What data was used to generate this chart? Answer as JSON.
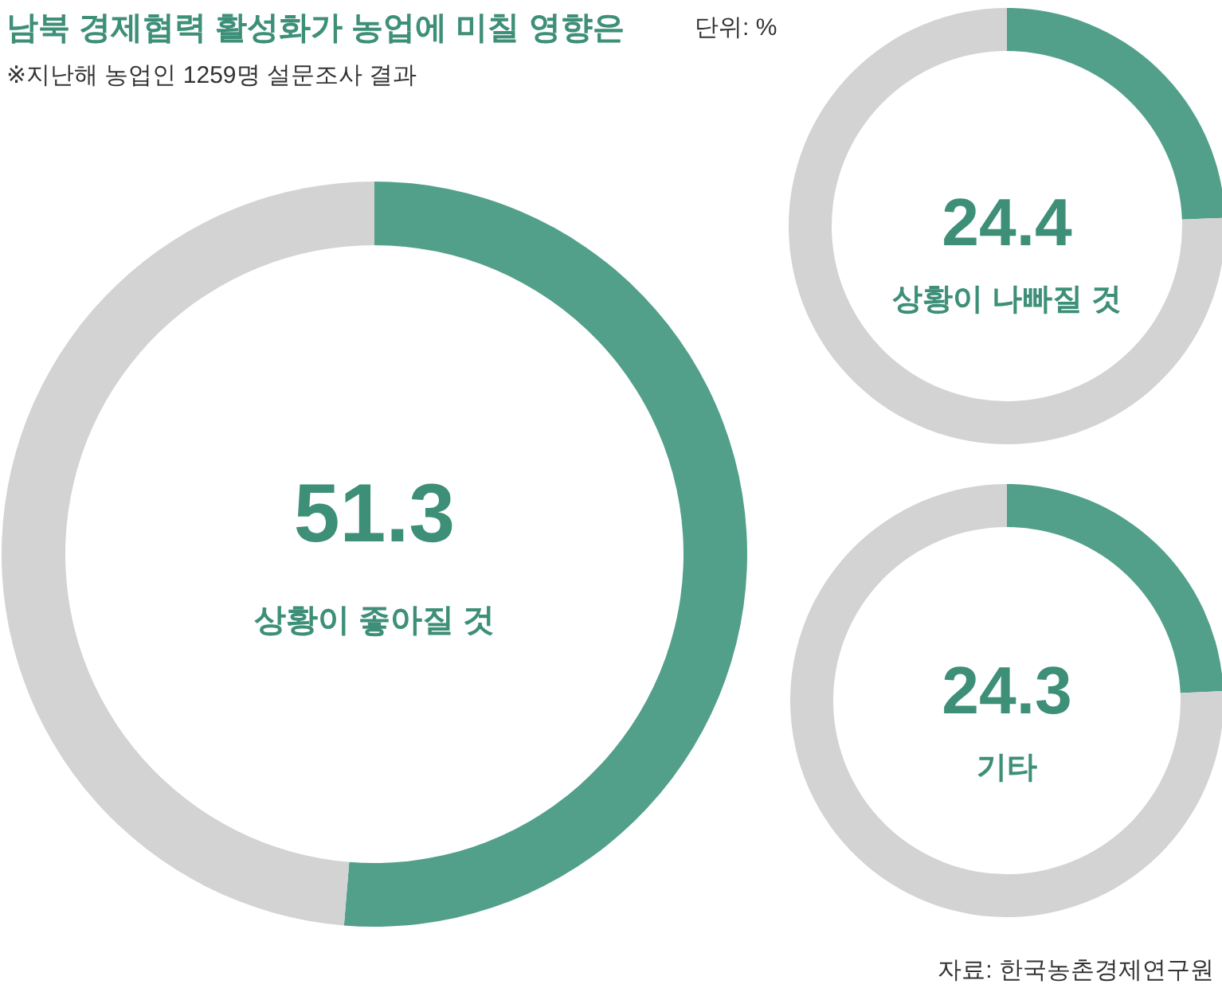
{
  "chart_data": [
    {
      "type": "donut",
      "title": "남북 경제협력 활성화가 농업에 미칠 영향은",
      "subtitle": "※지난해 농업인 1259명 설문조사 결과",
      "annotations": [
        "단위: %",
        "자료: 한국농촌경제연구원"
      ],
      "categories": [
        "상황이 좋아질 것",
        null
      ],
      "values": [
        51.3,
        48.7
      ],
      "colors": [
        "#52a08a",
        "#d3d3d3"
      ],
      "value_labels": [
        "51.3",
        null
      ]
    },
    {
      "type": "donut",
      "categories": [
        "상황이 나빠질 것",
        null
      ],
      "values": [
        24.4,
        75.6
      ],
      "colors": [
        "#52a08a",
        "#d3d3d3"
      ],
      "value_labels": [
        "24.4",
        null
      ]
    },
    {
      "type": "donut",
      "categories": [
        "기타",
        null
      ],
      "values": [
        24.3,
        75.7
      ],
      "colors": [
        "#52a08a",
        "#d3d3d3"
      ],
      "value_labels": [
        "24.3",
        null
      ]
    }
  ]
}
